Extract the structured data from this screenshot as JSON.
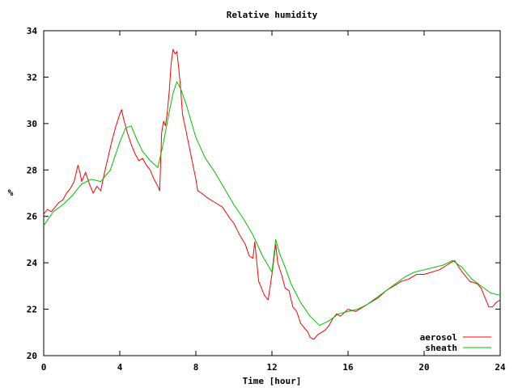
{
  "chart_data": {
    "type": "line",
    "title": "Relative humidity",
    "xlabel": "Time [hour]",
    "ylabel": "%",
    "xlim": [
      0,
      24
    ],
    "ylim": [
      20,
      34
    ],
    "xticks": [
      0,
      4,
      8,
      12,
      16,
      20,
      24
    ],
    "yticks": [
      20,
      22,
      24,
      26,
      28,
      30,
      32,
      34
    ],
    "grid": false,
    "legend": "bottom-right",
    "series": [
      {
        "name": "aerosol",
        "color": "#ff0000",
        "x": [
          0.0,
          0.2,
          0.4,
          0.6,
          0.8,
          1.0,
          1.2,
          1.4,
          1.6,
          1.8,
          1.9,
          2.0,
          2.2,
          2.4,
          2.5,
          2.6,
          2.8,
          3.0,
          3.2,
          3.4,
          3.6,
          3.8,
          4.0,
          4.1,
          4.2,
          4.4,
          4.6,
          4.8,
          5.0,
          5.2,
          5.4,
          5.6,
          5.8,
          6.0,
          6.1,
          6.2,
          6.3,
          6.4,
          6.5,
          6.6,
          6.7,
          6.8,
          6.9,
          7.0,
          7.1,
          7.2,
          7.3,
          7.5,
          7.8,
          8.0,
          8.1,
          8.3,
          8.6,
          9.0,
          9.4,
          9.8,
          10.0,
          10.3,
          10.6,
          10.8,
          11.0,
          11.1,
          11.3,
          11.6,
          11.8,
          12.0,
          12.2,
          12.3,
          12.5,
          12.7,
          12.9,
          13.1,
          13.3,
          13.5,
          13.7,
          13.9,
          14.0,
          14.2,
          14.4,
          14.6,
          14.8,
          15.0,
          15.2,
          15.4,
          15.6,
          16.0,
          16.4,
          16.8,
          17.2,
          17.6,
          18.0,
          18.4,
          18.8,
          19.2,
          19.6,
          20.0,
          20.4,
          20.8,
          21.2,
          21.4,
          21.6,
          22.0,
          22.4,
          22.8,
          23.0,
          23.2,
          23.4,
          23.6,
          23.8,
          24.0
        ],
        "y": [
          26.1,
          26.3,
          26.2,
          26.4,
          26.6,
          26.7,
          27.0,
          27.2,
          27.5,
          28.2,
          27.9,
          27.5,
          27.9,
          27.4,
          27.2,
          27.0,
          27.3,
          27.1,
          27.9,
          28.6,
          29.3,
          29.9,
          30.4,
          30.6,
          30.2,
          29.6,
          29.1,
          28.7,
          28.4,
          28.5,
          28.2,
          28.0,
          27.6,
          27.3,
          27.1,
          29.6,
          30.1,
          29.9,
          30.5,
          31.4,
          32.6,
          33.2,
          33.0,
          33.1,
          32.4,
          31.5,
          30.4,
          29.6,
          28.4,
          27.6,
          27.1,
          27.0,
          26.8,
          26.6,
          26.4,
          25.9,
          25.7,
          25.2,
          24.8,
          24.3,
          24.2,
          24.9,
          23.2,
          22.6,
          22.4,
          23.5,
          24.8,
          24.0,
          23.5,
          22.9,
          22.8,
          22.1,
          21.9,
          21.4,
          21.2,
          21.0,
          20.8,
          20.7,
          20.9,
          21.0,
          21.1,
          21.3,
          21.6,
          21.8,
          21.7,
          22.0,
          21.9,
          22.1,
          22.3,
          22.5,
          22.8,
          23.0,
          23.2,
          23.3,
          23.5,
          23.5,
          23.6,
          23.7,
          23.9,
          24.0,
          24.1,
          23.6,
          23.2,
          23.1,
          22.9,
          22.5,
          22.1,
          22.1,
          22.3,
          22.4
        ]
      },
      {
        "name": "sheath",
        "color": "#00c000",
        "x": [
          0.0,
          0.5,
          1.0,
          1.5,
          2.0,
          2.5,
          3.0,
          3.5,
          4.0,
          4.3,
          4.6,
          4.9,
          5.2,
          5.6,
          6.0,
          6.3,
          6.6,
          6.8,
          7.0,
          7.2,
          7.5,
          8.0,
          8.5,
          9.0,
          9.5,
          10.0,
          10.5,
          11.0,
          11.5,
          12.0,
          12.2,
          12.4,
          12.7,
          13.0,
          13.5,
          14.0,
          14.5,
          15.0,
          15.5,
          16.0,
          16.5,
          17.0,
          17.5,
          18.0,
          18.5,
          19.0,
          19.5,
          20.0,
          20.5,
          21.0,
          21.5,
          22.0,
          22.5,
          23.0,
          23.5,
          24.0
        ],
        "y": [
          25.6,
          26.2,
          26.5,
          26.9,
          27.4,
          27.6,
          27.5,
          28.0,
          29.2,
          29.8,
          29.9,
          29.3,
          28.8,
          28.4,
          28.1,
          29.2,
          30.5,
          31.3,
          31.8,
          31.5,
          30.8,
          29.4,
          28.5,
          27.9,
          27.2,
          26.5,
          25.9,
          25.2,
          24.3,
          23.6,
          25.0,
          24.4,
          23.8,
          23.1,
          22.3,
          21.7,
          21.3,
          21.5,
          21.8,
          21.9,
          22.0,
          22.2,
          22.5,
          22.8,
          23.1,
          23.4,
          23.6,
          23.7,
          23.8,
          23.9,
          24.1,
          23.8,
          23.3,
          23.0,
          22.7,
          22.6
        ]
      }
    ]
  }
}
